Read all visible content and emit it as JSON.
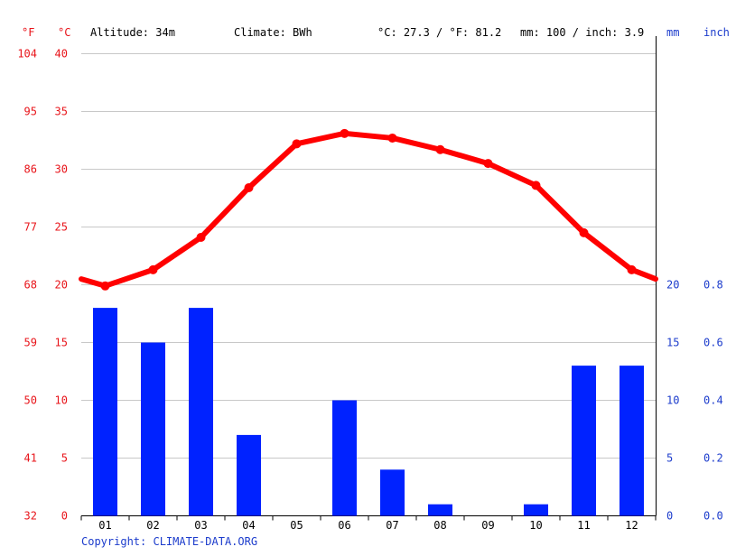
{
  "header": {
    "altitude": "Altitude: 34m",
    "climate": "Climate: BWh",
    "temp_avg": "°C: 27.3 / °F: 81.2",
    "precip_total": "mm: 100 / inch: 3.9",
    "unit_f": "°F",
    "unit_c": "°C",
    "unit_mm": "mm",
    "unit_inch": "inch"
  },
  "footer": {
    "copyright": "Copyright: CLIMATE-DATA.ORG"
  },
  "colors": {
    "temperature": "#ff0000",
    "precipitation": "#0022ff",
    "fahrenheit_axis": "#e8141a",
    "precip_axis": "#1c3ccc",
    "grid": "#c8c8c8"
  },
  "chart_data": {
    "type": "bar+line",
    "categories": [
      "01",
      "02",
      "03",
      "04",
      "05",
      "06",
      "07",
      "08",
      "09",
      "10",
      "11",
      "12"
    ],
    "series": [
      {
        "type": "line",
        "unit": "°C",
        "values": [
          19.9,
          21.3,
          24.1,
          28.4,
          32.2,
          33.1,
          32.7,
          31.7,
          30.5,
          28.6,
          24.5,
          21.3
        ],
        "ends": {
          "left": 20.5,
          "right": 20.5
        }
      },
      {
        "type": "bar",
        "unit": "mm",
        "values": [
          18,
          15,
          18,
          7,
          0,
          10,
          4,
          1,
          0,
          1,
          13,
          13
        ]
      }
    ],
    "left_axes": {
      "fahrenheit_ticks": [
        "104",
        "95",
        "86",
        "77",
        "68",
        "59",
        "50",
        "41",
        "32"
      ],
      "celsius_ticks": [
        "40",
        "35",
        "30",
        "25",
        "20",
        "15",
        "10",
        "5",
        "0"
      ],
      "celsius_range": [
        0,
        40
      ]
    },
    "right_axes": {
      "mm_ticks": [
        "20",
        "15",
        "10",
        "5",
        "0"
      ],
      "inch_ticks": [
        "0.8",
        "0.6",
        "0.4",
        "0.2",
        "0.0"
      ],
      "mm_range": [
        0,
        40
      ]
    },
    "grid": true
  }
}
